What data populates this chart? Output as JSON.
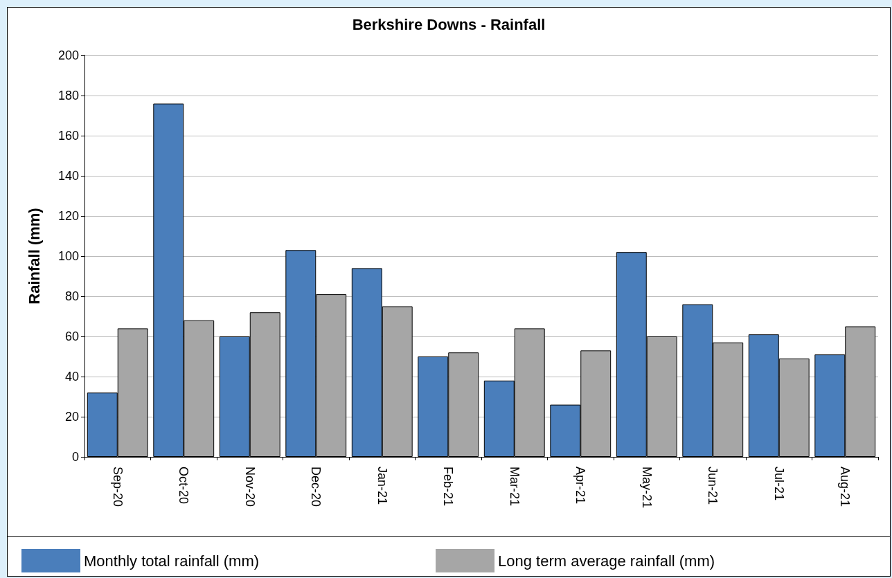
{
  "chart_data": {
    "type": "bar",
    "title": "Berkshire Downs - Rainfall",
    "ylabel": "Rainfall (mm)",
    "categories": [
      "Sep-20",
      "Oct-20",
      "Nov-20",
      "Dec-20",
      "Jan-21",
      "Feb-21",
      "Mar-21",
      "Apr-21",
      "May-21",
      "Jun-21",
      "Jul-21",
      "Aug-21"
    ],
    "series": [
      {
        "name": "Monthly total rainfall (mm)",
        "color": "#4a7ebb",
        "values": [
          32,
          176,
          60,
          103,
          94,
          50,
          38,
          26,
          102,
          76,
          61,
          51
        ]
      },
      {
        "name": "Long term average rainfall (mm)",
        "color": "#a6a6a6",
        "values": [
          64,
          68,
          72,
          81,
          75,
          52,
          64,
          53,
          60,
          57,
          49,
          65
        ]
      }
    ],
    "ylim": [
      0,
      200
    ],
    "yticks": [
      0,
      20,
      40,
      60,
      80,
      100,
      120,
      140,
      160,
      180,
      200
    ],
    "grid": "y",
    "legend": "bottom"
  }
}
